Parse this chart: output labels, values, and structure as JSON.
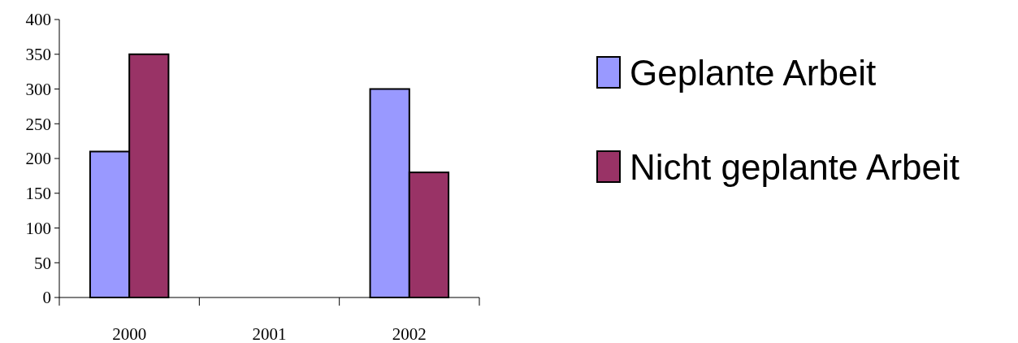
{
  "chart_data": {
    "type": "bar",
    "categories": [
      "2000",
      "2001",
      "2002"
    ],
    "series": [
      {
        "name": "Geplante Arbeit",
        "color": "#9999ff",
        "values": [
          210,
          null,
          300
        ]
      },
      {
        "name": "Nicht geplante Arbeit",
        "color": "#993366",
        "values": [
          350,
          null,
          180
        ]
      }
    ],
    "ylim": [
      0,
      400
    ],
    "yticks": [
      0,
      50,
      100,
      150,
      200,
      250,
      300,
      350,
      400
    ],
    "grid": false,
    "legend": "right"
  }
}
